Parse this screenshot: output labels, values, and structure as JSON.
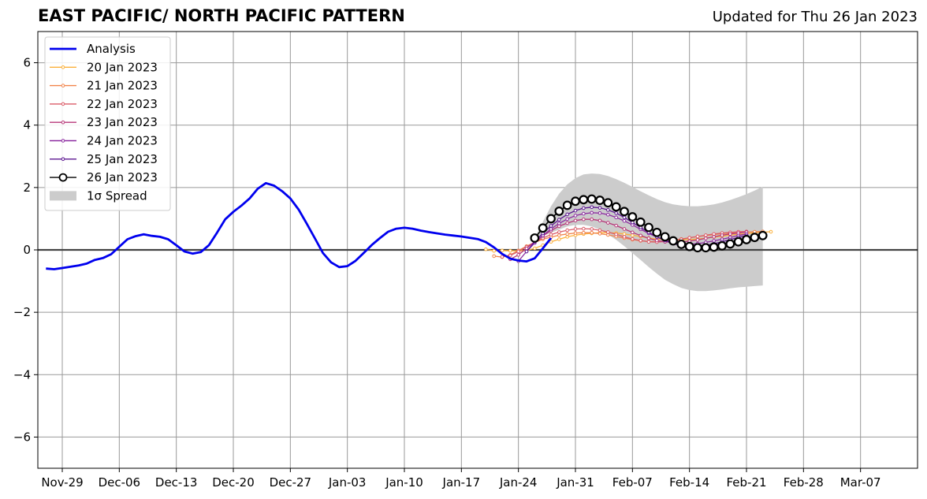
{
  "chart_data": {
    "type": "line",
    "title": "EAST PACIFIC/ NORTH PACIFIC PATTERN",
    "subtitle": "Updated for Thu 26 Jan 2023",
    "xlabel": "",
    "ylabel": "",
    "x_start": "2023-11-26",
    "xlim": [
      "2022-11-26",
      "2023-03-14"
    ],
    "ylim": [
      -7,
      7
    ],
    "grid": true,
    "legend_position": "top-left",
    "x_ticks": [
      "Nov-29",
      "Dec-06",
      "Dec-13",
      "Dec-20",
      "Dec-27",
      "Jan-03",
      "Jan-10",
      "Jan-17",
      "Jan-24",
      "Jan-31",
      "Feb-07",
      "Feb-14",
      "Feb-21",
      "Feb-28",
      "Mar-07"
    ],
    "x_tick_dates": [
      "2022-11-29",
      "2022-12-06",
      "2022-12-13",
      "2022-12-20",
      "2022-12-27",
      "2023-01-03",
      "2023-01-10",
      "2023-01-17",
      "2023-01-24",
      "2023-01-31",
      "2023-02-07",
      "2023-02-14",
      "2023-02-21",
      "2023-02-28",
      "2023-03-07"
    ],
    "y_ticks": [
      "−6",
      "−4",
      "−2",
      "0",
      "2",
      "4",
      "6"
    ],
    "y_tick_values": [
      -6,
      -4,
      -2,
      0,
      2,
      4,
      6
    ],
    "analysis": {
      "name": "Analysis",
      "color": "#0000ee",
      "start_date": "2022-11-27",
      "values": [
        -0.6,
        -0.62,
        -0.58,
        -0.54,
        -0.5,
        -0.44,
        -0.32,
        -0.26,
        -0.14,
        0.1,
        0.34,
        0.44,
        0.5,
        0.45,
        0.42,
        0.34,
        0.15,
        -0.05,
        -0.12,
        -0.07,
        0.15,
        0.55,
        0.98,
        1.22,
        1.42,
        1.65,
        1.96,
        2.14,
        2.06,
        1.88,
        1.65,
        1.3,
        0.85,
        0.38,
        -0.1,
        -0.4,
        -0.55,
        -0.52,
        -0.35,
        -0.1,
        0.16,
        0.38,
        0.58,
        0.68,
        0.71,
        0.68,
        0.62,
        0.57,
        0.53,
        0.49,
        0.46,
        0.43,
        0.39,
        0.35,
        0.25,
        0.08,
        -0.13,
        -0.28,
        -0.34,
        -0.37,
        -0.27,
        0.05,
        0.38
      ]
    },
    "forecast_series": [
      {
        "name": "20 Jan 2023",
        "color": "#fbb03b",
        "start_date": "2023-01-20",
        "values": [
          0.02,
          -0.03,
          -0.02,
          -0.03,
          -0.03,
          -0.02,
          0.05,
          0.15,
          0.26,
          0.34,
          0.42,
          0.47,
          0.51,
          0.53,
          0.55,
          0.55,
          0.54,
          0.51,
          0.47,
          0.43,
          0.38,
          0.35,
          0.33,
          0.32,
          0.32,
          0.33,
          0.35,
          0.38,
          0.41,
          0.44,
          0.47,
          0.5,
          0.52,
          0.55,
          0.57,
          0.58
        ]
      },
      {
        "name": "21 Jan 2023",
        "color": "#f1844b",
        "start_date": "2023-01-21",
        "values": [
          -0.2,
          -0.23,
          -0.16,
          -0.02,
          0.12,
          0.24,
          0.34,
          0.41,
          0.47,
          0.51,
          0.54,
          0.55,
          0.55,
          0.52,
          0.48,
          0.43,
          0.38,
          0.33,
          0.29,
          0.27,
          0.26,
          0.28,
          0.31,
          0.35,
          0.39,
          0.43,
          0.46,
          0.49,
          0.52,
          0.54,
          0.56,
          0.57,
          0.58,
          0.59
        ]
      },
      {
        "name": "22 Jan 2023",
        "color": "#db5c68",
        "start_date": "2023-01-22",
        "values": [
          -0.22,
          -0.18,
          -0.05,
          0.1,
          0.25,
          0.38,
          0.49,
          0.57,
          0.63,
          0.67,
          0.68,
          0.67,
          0.63,
          0.57,
          0.5,
          0.42,
          0.35,
          0.3,
          0.26,
          0.25,
          0.27,
          0.3,
          0.34,
          0.39,
          0.43,
          0.47,
          0.51,
          0.54,
          0.56,
          0.58,
          0.59
        ]
      },
      {
        "name": "23 Jan 2023",
        "color": "#b73779",
        "start_date": "2023-01-23",
        "values": [
          -0.3,
          -0.16,
          0.05,
          0.26,
          0.45,
          0.62,
          0.76,
          0.86,
          0.94,
          0.98,
          0.98,
          0.94,
          0.87,
          0.78,
          0.67,
          0.56,
          0.46,
          0.37,
          0.3,
          0.26,
          0.24,
          0.25,
          0.28,
          0.32,
          0.37,
          0.42,
          0.47,
          0.51,
          0.54,
          0.57
        ]
      },
      {
        "name": "24 Jan 2023",
        "color": "#8c2aa0",
        "start_date": "2023-01-24",
        "values": [
          -0.36,
          -0.05,
          0.22,
          0.46,
          0.67,
          0.85,
          0.99,
          1.1,
          1.16,
          1.19,
          1.18,
          1.13,
          1.04,
          0.93,
          0.8,
          0.66,
          0.53,
          0.41,
          0.31,
          0.24,
          0.2,
          0.19,
          0.2,
          0.24,
          0.29,
          0.34,
          0.4,
          0.46,
          0.51
        ]
      },
      {
        "name": "25 Jan 2023",
        "color": "#5c1691",
        "start_date": "2023-01-25",
        "values": [
          -0.05,
          0.26,
          0.53,
          0.77,
          0.97,
          1.14,
          1.26,
          1.34,
          1.37,
          1.35,
          1.28,
          1.18,
          1.04,
          0.88,
          0.72,
          0.56,
          0.42,
          0.3,
          0.2,
          0.14,
          0.11,
          0.12,
          0.15,
          0.2,
          0.26,
          0.33,
          0.4,
          0.46
        ]
      },
      {
        "name": "26 Jan 2023",
        "color": "#000000",
        "marker": "open-circle",
        "start_date": "2023-01-26",
        "values": [
          0.38,
          0.7,
          1.0,
          1.24,
          1.43,
          1.56,
          1.61,
          1.63,
          1.59,
          1.51,
          1.38,
          1.23,
          1.06,
          0.89,
          0.72,
          0.56,
          0.42,
          0.29,
          0.18,
          0.11,
          0.07,
          0.07,
          0.09,
          0.13,
          0.19,
          0.26,
          0.33,
          0.4,
          0.46
        ]
      }
    ],
    "spread": {
      "name": "1σ Spread",
      "color": "#cccccc",
      "start_date": "2023-01-26",
      "upper": [
        0.38,
        0.9,
        1.4,
        1.8,
        2.1,
        2.3,
        2.42,
        2.45,
        2.43,
        2.37,
        2.27,
        2.15,
        2.02,
        1.88,
        1.75,
        1.63,
        1.53,
        1.46,
        1.42,
        1.4,
        1.4,
        1.42,
        1.46,
        1.52,
        1.6,
        1.69,
        1.79,
        1.9,
        2.03
      ],
      "lower": [
        0.38,
        0.45,
        0.55,
        0.65,
        0.75,
        0.8,
        0.8,
        0.75,
        0.65,
        0.5,
        0.32,
        0.12,
        -0.1,
        -0.32,
        -0.55,
        -0.76,
        -0.96,
        -1.1,
        -1.22,
        -1.29,
        -1.32,
        -1.32,
        -1.3,
        -1.27,
        -1.23,
        -1.2,
        -1.18,
        -1.16,
        -1.14
      ]
    }
  }
}
